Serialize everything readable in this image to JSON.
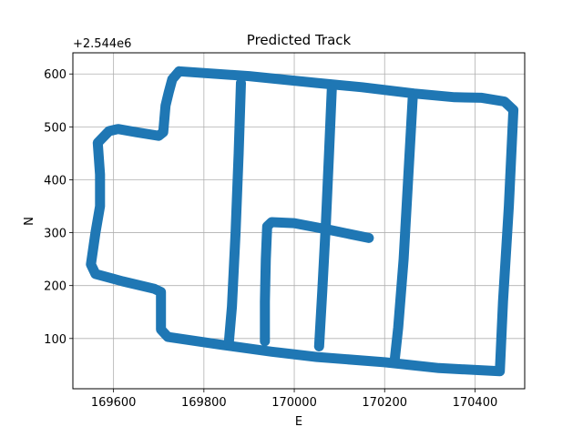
{
  "chart_data": {
    "type": "scatter",
    "title": "Predicted Track",
    "xlabel": "E",
    "ylabel": "N",
    "y_offset_label": "+2.544e6",
    "xlim": [
      169510,
      170510
    ],
    "ylim": [
      5,
      640
    ],
    "xticks": [
      169600,
      169800,
      170000,
      170200,
      170400
    ],
    "xtick_labels": [
      "169600",
      "169800",
      "170000",
      "170200",
      "170400"
    ],
    "yticks": [
      100,
      200,
      300,
      400,
      500,
      600
    ],
    "ytick_labels": [
      "100",
      "200",
      "300",
      "400",
      "500",
      "600"
    ],
    "grid": true,
    "legend": "none",
    "color": "#1f77b4",
    "series": [
      {
        "points": [
          [
            169745,
            605
          ],
          [
            169900,
            596
          ],
          [
            170050,
            583
          ],
          [
            170150,
            575
          ],
          [
            170265,
            563
          ],
          [
            170355,
            556
          ],
          [
            170415,
            555
          ],
          [
            170465,
            548
          ],
          [
            170485,
            532
          ],
          [
            170475,
            350
          ],
          [
            170462,
            170
          ],
          [
            170455,
            38
          ],
          [
            170320,
            44
          ],
          [
            170200,
            55
          ],
          [
            170050,
            65
          ],
          [
            169950,
            75
          ],
          [
            169840,
            88
          ],
          [
            169720,
            103
          ],
          [
            169705,
            117
          ],
          [
            169705,
            188
          ],
          [
            169690,
            194
          ],
          [
            169620,
            208
          ],
          [
            169560,
            222
          ],
          [
            169550,
            240
          ],
          [
            169560,
            300
          ],
          [
            169570,
            350
          ],
          [
            169570,
            410
          ],
          [
            169565,
            470
          ],
          [
            169590,
            492
          ],
          [
            169610,
            496
          ],
          [
            169650,
            490
          ],
          [
            169700,
            483
          ],
          [
            169710,
            490
          ],
          [
            169715,
            540
          ],
          [
            169722,
            565
          ],
          [
            169730,
            590
          ],
          [
            169745,
            605
          ]
        ]
      },
      {
        "points": [
          [
            169882,
            583
          ],
          [
            169877,
            450
          ],
          [
            169870,
            300
          ],
          [
            169862,
            160
          ],
          [
            169855,
            90
          ]
        ]
      },
      {
        "points": [
          [
            170083,
            570
          ],
          [
            170077,
            450
          ],
          [
            170070,
            320
          ],
          [
            170062,
            190
          ],
          [
            170055,
            85
          ]
        ]
      },
      {
        "points": [
          [
            170262,
            553
          ],
          [
            170252,
            400
          ],
          [
            170242,
            250
          ],
          [
            170230,
            120
          ],
          [
            170222,
            58
          ]
        ]
      },
      {
        "points": [
          [
            169935,
            95
          ],
          [
            169935,
            170
          ],
          [
            169937,
            250
          ],
          [
            169940,
            312
          ],
          [
            169950,
            320
          ],
          [
            170000,
            318
          ],
          [
            170080,
            305
          ],
          [
            170165,
            290
          ]
        ]
      }
    ]
  }
}
